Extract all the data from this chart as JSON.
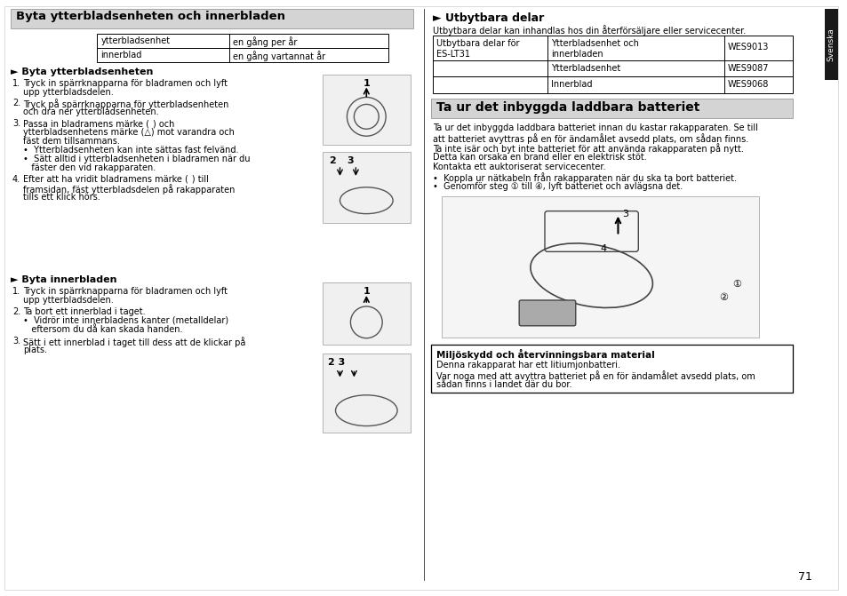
{
  "page_bg": "#ffffff",
  "header_bg": "#d9d9d9",
  "section2_header_bg": "#d9d9d9",
  "black_tab_color": "#1a1a1a",
  "border_color": "#000000",
  "text_color": "#000000",
  "page_number": "71",
  "sidebar_text": "Svenska",
  "left_section": {
    "title": "Byta ytterbladsenheten och innerbladen",
    "table": {
      "rows": [
        [
          "ytterbladsenhet",
          "en gång per år"
        ],
        [
          "innerblad",
          "en gång vartannat år"
        ]
      ]
    },
    "subsection1_title": "► Byta ytterbladsenheten",
    "subsection1_steps": [
      "1.  Tryck in spärrknapparna för bladramen och lyft\n    upp ytterbladsdelen.",
      "2.  Tryck på spärrknapparna för ytterbladsenheten\n    och dra ner ytterbladsenheten.",
      "3.  Passa in bladramens märke (  ) och\n    ytterbladsenhetens märke (△) mot varandra och\n    fäst dem tillsammans.\n    •  Ytterbladsenheten kan inte sättas fast felvänd.\n    •  Sätt alltid i ytterbladsenheten i bladramen när du\n       fäster den vid rakapparaten.",
      "4.  Efter att ha vridit bladramens märke (  ) till\n    framsidan, fäst ytterbladsdelen på rakapparaten\n    tills ett klick hörs."
    ],
    "subsection2_title": "► Byta innerbladen",
    "subsection2_steps": [
      "1.  Tryck in spärrknapparna för bladramen och lyft\n    upp ytterbladsdelen.",
      "2.  Ta bort ett innerblad i taget.\n    •  Vidrör inte innerbladens kanter (metalldelar)\n       eftersom du då kan skada handen.",
      "3.  Sätt i ett innerblad i taget till dess att de klickar på\n    plats."
    ]
  },
  "right_section": {
    "subsection1_title": "► Utbytbara delar",
    "subsection1_text": "Utbytbara delar kan inhandlas hos din återförsäljare eller servicecenter.",
    "table": {
      "col1_header": "Utbytbara delar för\nES-LT31",
      "rows": [
        [
          "Ytterbladsenhet och\ninnerbladen",
          "WES9013"
        ],
        [
          "Ytterbladsenhet",
          "WES9087"
        ],
        [
          "Innerblad",
          "WES9068"
        ]
      ]
    },
    "section2_title": "Ta ur det inbyggda laddbara batteriet",
    "section2_paragraphs": [
      "Ta ur det inbyggda laddbara batteriet innan du kastar rakapparaten. Se till\natt batteriet avyttras på en för ändamålet avsedd plats, om sådan finns.\nTa inte isär och byt inte batteriet för att använda rakapparaten på nytt.\nDetta kan orsaka en brand eller en elektrisk stöt.\nKontakta ett auktoriserat servicecenter.",
      "•  Koppla ur nätkabeln från rakapparaten när du ska ta bort batteriet.",
      "•  Genomför steg ① till ④, lyft batteriet och avlägsna det."
    ],
    "box_title": "Miljöskydd och återvinningsbara material",
    "box_text": "Denna rakapparat har ett litiumjonbatteri.\nVar noga med att avyttra batteriet på en för ändamålet avsedd plats, om\nsådan finns i landet där du bor."
  }
}
